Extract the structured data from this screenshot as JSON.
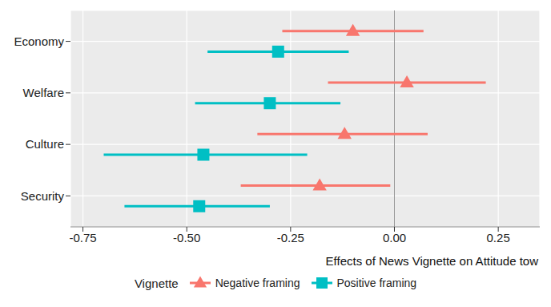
{
  "chart_data": {
    "type": "scatter",
    "orientation": "horizontal",
    "grid": true,
    "legend": "bottom",
    "legend_title": "Vignette",
    "x_label": "Effects of News Vignette on Attitude tow",
    "categories": [
      "Economy",
      "Welfare",
      "Culture",
      "Security"
    ],
    "xlim": [
      -0.78,
      0.35
    ],
    "xticks": [
      -0.75,
      {
        "value": -0.5,
        "label": "-0.50"
      },
      -0.25,
      {
        "value": 0,
        "label": "0.00"
      },
      0.25
    ],
    "reference_x": 0,
    "series": [
      {
        "name": "Negative framing",
        "color": "#F8766D",
        "marker": "triangle",
        "values": [
          -0.1,
          0.03,
          -0.12,
          -0.18
        ],
        "ci_low": [
          -0.27,
          -0.16,
          -0.33,
          -0.37
        ],
        "ci_high": [
          0.07,
          0.22,
          0.08,
          -0.01
        ]
      },
      {
        "name": "Positive framing",
        "color": "#00BFC4",
        "marker": "square",
        "values": [
          -0.28,
          -0.3,
          -0.46,
          -0.47
        ],
        "ci_low": [
          -0.45,
          -0.48,
          -0.7,
          -0.65
        ],
        "ci_high": [
          -0.11,
          -0.13,
          -0.21,
          -0.3
        ]
      }
    ]
  }
}
